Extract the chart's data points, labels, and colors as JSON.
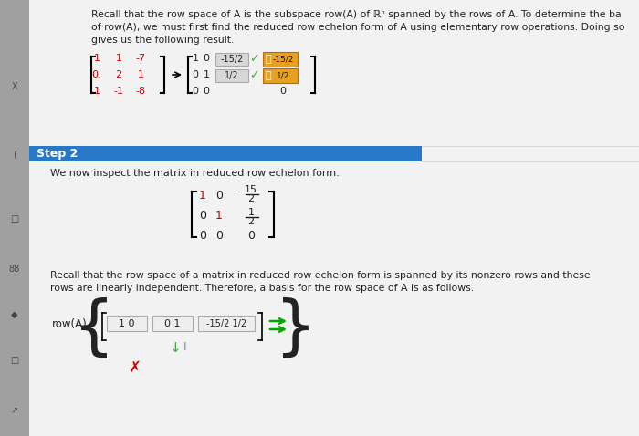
{
  "page_bg": "#e8e8e8",
  "content_bg": "#f5f5f5",
  "sidebar_bg": "#b0b0b0",
  "step2_bg": "#2878c8",
  "text_color": "#222222",
  "red_color": "#cc0000",
  "green_color": "#44aa44",
  "orange_color": "#e8a020",
  "box_bg": "#d8d8d8",
  "box_border": "#aaaaaa",
  "orange_box_bg": "#d4a020",
  "white": "#ffffff",
  "line1": "Recall that the row space of A is the subspace row(A) of ℝⁿ spanned by the rows of A. To determine the ba",
  "line2": "of row(A), we must first find the reduced row echelon form of A using elementary row operations. Doing so",
  "line3": "gives us the following result.",
  "step2_label": "Step 2",
  "step2_text": "We now inspect the matrix in reduced row echelon form.",
  "recall_line1": "Recall that the row space of a matrix in reduced row echelon form is spanned by its nonzero rows and these",
  "recall_line2": "rows are linearly independent. Therefore, a basis for the row space of A is as follows.",
  "row_A_label": "row(A)"
}
